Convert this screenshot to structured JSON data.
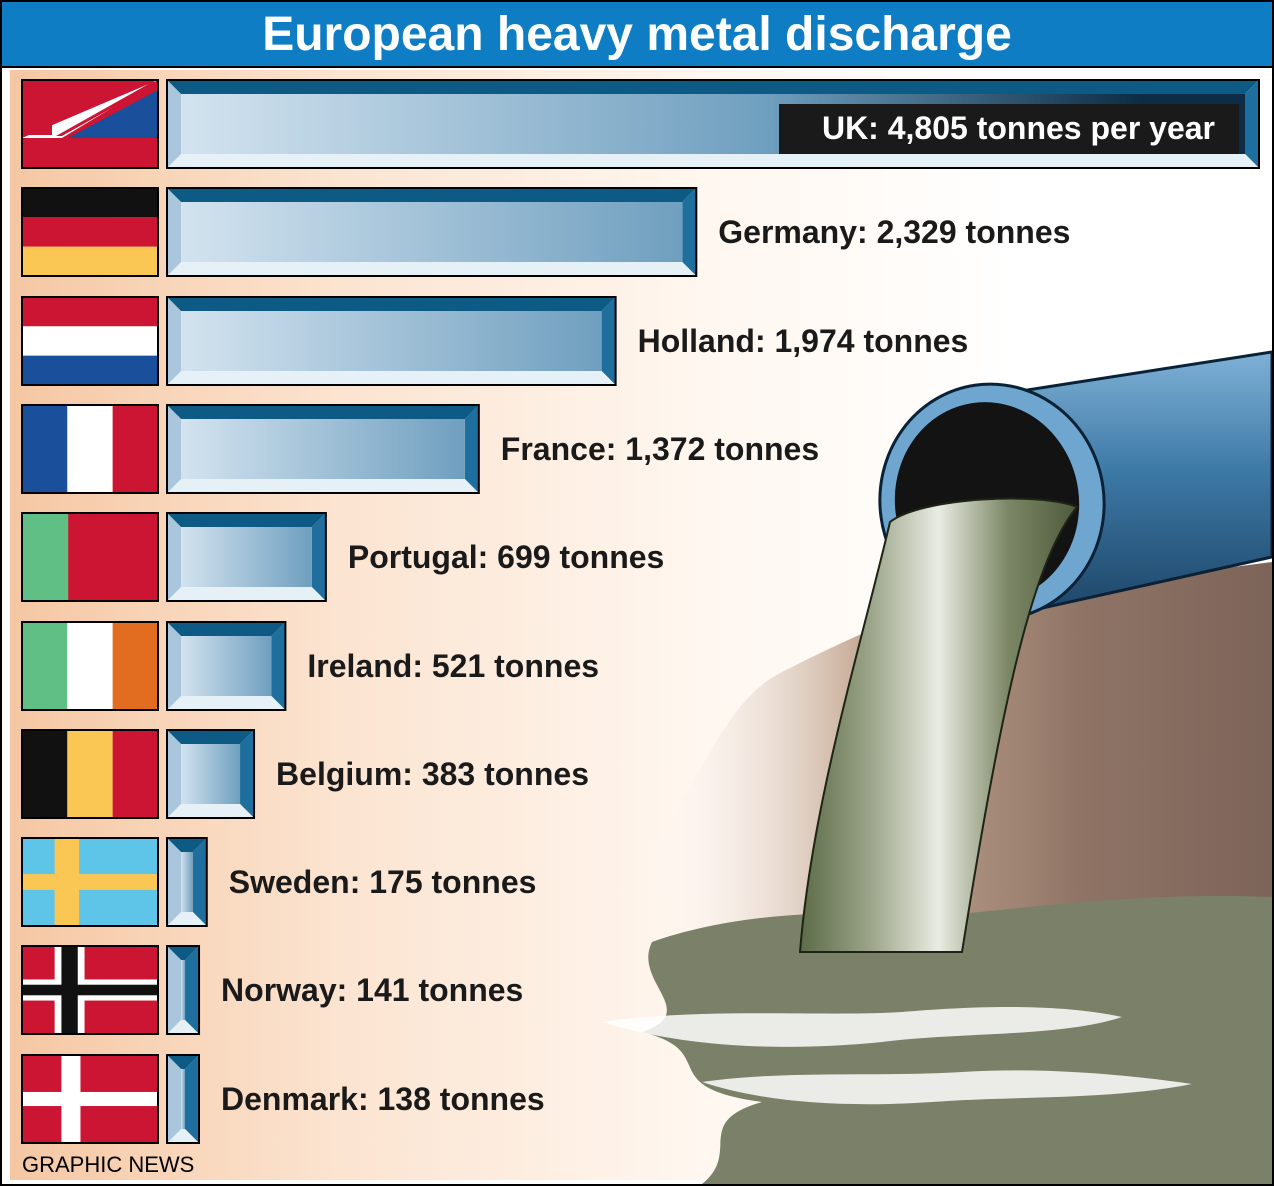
{
  "title": "European heavy metal discharge",
  "credit": "GRAPHIC NEWS",
  "colors": {
    "title_bg": "#0e7dc4",
    "bar_face_light": "#c9dcea",
    "bar_face_dark": "#6f9fbf",
    "bar_bevel_dark": "#0d5a85",
    "bar_bevel_light": "#e6f0f7",
    "label_box": "#1a1a1a"
  },
  "chart_data": {
    "type": "bar",
    "orientation": "horizontal",
    "unit": "tonnes",
    "categories": [
      "UK",
      "Germany",
      "Holland",
      "France",
      "Portugal",
      "Ireland",
      "Belgium",
      "Sweden",
      "Norway",
      "Denmark"
    ],
    "values": [
      4805,
      2329,
      1974,
      1372,
      699,
      521,
      383,
      175,
      141,
      138
    ],
    "labels": [
      "UK: 4,805 tonnes per year",
      "Germany: 2,329 tonnes",
      "Holland: 1,974 tonnes",
      "France: 1,372 tonnes",
      "Portugal: 699 tonnes",
      "Ireland: 521 tonnes",
      "Belgium: 383 tonnes",
      "Sweden: 175 tonnes",
      "Norway: 141 tonnes",
      "Denmark: 138 tonnes"
    ],
    "flags": [
      "uk-flag",
      "germany-flag",
      "holland-flag",
      "france-flag",
      "portugal-flag",
      "ireland-flag",
      "belgium-flag",
      "sweden-flag",
      "norway-flag",
      "denmark-flag"
    ],
    "grid": false,
    "legend": "none"
  }
}
